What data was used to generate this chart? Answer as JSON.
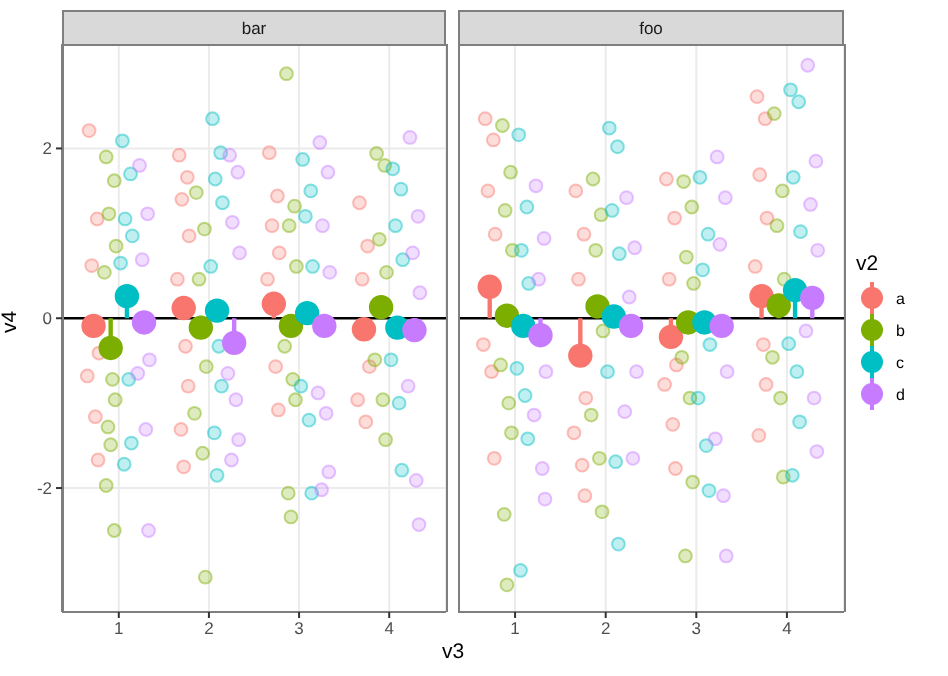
{
  "chart_data": [
    {
      "type": "scatter",
      "title": "bar",
      "xlabel": "v3",
      "ylabel": "v4",
      "xlim": [
        0.37,
        4.63
      ],
      "xticks": [
        1,
        2,
        3,
        4
      ],
      "ylim": [
        -3.46,
        3.23
      ],
      "yticks": [
        -2,
        0,
        2
      ],
      "grid": true,
      "marker": "circle",
      "ref_lines": [
        {
          "axis": "y",
          "value": 0,
          "color": "#000000"
        }
      ],
      "series": [
        {
          "color": "#f8766d",
          "x": [
            0.67,
            0.76,
            0.7,
            0.78,
            0.65,
            0.74,
            0.77,
            1.67,
            1.76,
            1.7,
            1.78,
            1.65,
            1.74,
            1.77,
            1.69,
            1.72,
            2.67,
            2.76,
            2.7,
            2.78,
            2.65,
            2.74,
            2.77,
            3.67,
            3.76,
            3.7,
            3.78,
            3.65,
            3.74
          ],
          "values": [
            2.21,
            1.17,
            0.62,
            -0.41,
            -0.68,
            -1.16,
            -1.67,
            1.92,
            1.66,
            1.4,
            0.97,
            0.46,
            -0.33,
            -0.8,
            -1.31,
            -1.75,
            1.95,
            1.44,
            1.09,
            0.77,
            0.46,
            -0.57,
            -1.08,
            1.36,
            0.85,
            0.46,
            -0.57,
            -0.96,
            -1.22
          ]
        },
        {
          "color": "#7cae00",
          "x": [
            0.86,
            0.95,
            0.89,
            0.97,
            0.84,
            0.93,
            0.96,
            0.88,
            0.91,
            0.86,
            0.95,
            1.86,
            1.95,
            1.89,
            1.97,
            1.84,
            1.93,
            1.96,
            2.86,
            2.95,
            2.89,
            2.97,
            2.84,
            2.93,
            2.96,
            2.88,
            2.91,
            3.86,
            3.95,
            3.89,
            3.97,
            3.84,
            3.93,
            3.96
          ],
          "values": [
            1.9,
            1.62,
            1.23,
            0.85,
            0.54,
            -0.72,
            -0.96,
            -1.28,
            -1.49,
            -1.97,
            -2.5,
            1.48,
            1.05,
            0.46,
            -0.57,
            -1.12,
            -1.59,
            -3.05,
            2.88,
            1.32,
            1.09,
            0.61,
            -0.33,
            -0.72,
            -0.96,
            -2.06,
            -2.34,
            1.94,
            1.8,
            0.93,
            0.54,
            -0.49,
            -0.96,
            -1.43
          ]
        },
        {
          "color": "#00bfc4",
          "x": [
            1.04,
            1.13,
            1.07,
            1.15,
            1.02,
            1.11,
            1.14,
            1.06,
            2.04,
            2.13,
            2.07,
            2.15,
            2.02,
            2.11,
            2.14,
            2.06,
            2.09,
            3.04,
            3.13,
            3.07,
            3.15,
            3.02,
            3.11,
            3.14,
            4.04,
            4.13,
            4.07,
            4.15,
            4.02,
            4.11,
            4.14
          ],
          "values": [
            2.09,
            1.7,
            1.17,
            0.97,
            0.65,
            -0.72,
            -1.47,
            -1.72,
            2.35,
            1.95,
            1.64,
            1.36,
            0.61,
            -0.33,
            -0.8,
            -1.35,
            -1.85,
            1.87,
            1.5,
            1.2,
            0.61,
            -0.8,
            -1.2,
            -2.06,
            1.76,
            1.52,
            1.09,
            0.69,
            -0.49,
            -1.0,
            -1.79
          ]
        },
        {
          "color": "#c77cff",
          "x": [
            1.23,
            1.32,
            1.26,
            1.34,
            1.21,
            1.3,
            1.33,
            2.23,
            2.32,
            2.26,
            2.34,
            2.21,
            2.3,
            2.33,
            2.25,
            3.23,
            3.32,
            3.26,
            3.34,
            3.21,
            3.3,
            3.33,
            3.25,
            4.23,
            4.32,
            4.26,
            4.34,
            4.21,
            4.3,
            4.33
          ],
          "values": [
            1.8,
            1.23,
            0.69,
            -0.49,
            -0.65,
            -1.31,
            -2.5,
            1.92,
            1.72,
            1.13,
            0.77,
            -0.65,
            -0.96,
            -1.43,
            -1.67,
            2.07,
            1.72,
            1.09,
            0.54,
            -0.88,
            -1.12,
            -1.81,
            -2.02,
            2.13,
            1.2,
            0.77,
            0.3,
            -0.8,
            -1.91,
            -2.43
          ]
        },
        {
          "type": "lollipop",
          "color": "#f8766d",
          "x": [
            0.72,
            1.72,
            2.72,
            3.72
          ],
          "values": [
            -0.09,
            0.12,
            0.17,
            -0.13
          ]
        },
        {
          "type": "lollipop",
          "color": "#7cae00",
          "x": [
            0.91,
            1.91,
            2.91,
            3.91
          ],
          "values": [
            -0.35,
            -0.11,
            -0.09,
            0.13
          ]
        },
        {
          "type": "lollipop",
          "color": "#00bfc4",
          "x": [
            1.09,
            2.09,
            3.09,
            4.09
          ],
          "values": [
            0.26,
            0.09,
            0.06,
            -0.11
          ]
        },
        {
          "type": "lollipop",
          "color": "#c77cff",
          "x": [
            1.28,
            2.28,
            3.28,
            4.28
          ],
          "values": [
            -0.05,
            -0.29,
            -0.09,
            -0.14
          ]
        }
      ]
    },
    {
      "type": "scatter",
      "title": "foo",
      "xlim": [
        0.37,
        4.63
      ],
      "xticks": [
        1,
        2,
        3,
        4
      ],
      "ylim": [
        -3.46,
        3.23
      ],
      "yticks": [
        -2,
        0,
        2
      ],
      "tick_labels": "x",
      "grid": true,
      "marker": "circle",
      "legend": "right",
      "legend_title": "v2",
      "ref_lines": [
        {
          "axis": "y",
          "value": 0,
          "color": "#000000"
        }
      ],
      "series": [
        {
          "color": "#f8766d",
          "x": [
            0.67,
            0.76,
            0.7,
            0.78,
            0.65,
            0.74,
            0.77,
            1.67,
            1.76,
            1.7,
            1.78,
            1.65,
            1.74,
            1.77,
            2.67,
            2.76,
            2.7,
            2.78,
            2.65,
            2.74,
            2.77,
            3.67,
            3.76,
            3.7,
            3.78,
            3.65,
            3.74,
            3.77,
            3.69
          ],
          "values": [
            2.35,
            2.1,
            1.5,
            0.99,
            -0.31,
            -0.63,
            -1.65,
            1.5,
            0.99,
            0.46,
            -0.94,
            -1.35,
            -1.73,
            -2.09,
            1.64,
            1.18,
            0.46,
            -0.55,
            -0.78,
            -1.25,
            -1.77,
            2.61,
            2.35,
            1.69,
            1.18,
            0.61,
            -0.31,
            -0.78,
            -1.38
          ]
        },
        {
          "color": "#7cae00",
          "x": [
            0.86,
            0.95,
            0.89,
            0.97,
            0.84,
            0.93,
            0.96,
            0.88,
            0.91,
            1.86,
            1.95,
            1.89,
            1.97,
            1.84,
            1.93,
            1.96,
            2.86,
            2.95,
            2.89,
            2.97,
            2.84,
            2.93,
            2.96,
            2.88,
            3.86,
            3.95,
            3.89,
            3.97,
            3.84,
            3.93,
            3.96
          ],
          "values": [
            2.27,
            1.72,
            1.27,
            0.8,
            -0.55,
            -1.0,
            -1.35,
            -2.31,
            -3.14,
            1.64,
            1.22,
            0.8,
            -0.15,
            -1.14,
            -1.65,
            -2.28,
            1.61,
            1.31,
            0.72,
            0.41,
            -0.46,
            -0.94,
            -1.93,
            -2.8,
            2.41,
            1.5,
            1.09,
            0.46,
            -0.46,
            -0.94,
            -1.87
          ]
        },
        {
          "color": "#00bfc4",
          "x": [
            1.04,
            1.13,
            1.07,
            1.15,
            1.02,
            1.11,
            1.14,
            1.06,
            2.04,
            2.13,
            2.07,
            2.15,
            2.02,
            2.11,
            2.14,
            3.04,
            3.13,
            3.07,
            3.15,
            3.02,
            3.11,
            3.14,
            4.04,
            4.13,
            4.07,
            4.15,
            4.02,
            4.11,
            4.14,
            4.06
          ],
          "values": [
            2.16,
            1.31,
            0.8,
            0.41,
            -0.59,
            -0.91,
            -1.42,
            -2.97,
            2.24,
            2.02,
            1.27,
            0.76,
            -0.63,
            -1.69,
            -2.66,
            1.66,
            0.99,
            0.57,
            -0.31,
            -0.94,
            -1.5,
            -2.03,
            2.69,
            2.55,
            1.66,
            1.02,
            -0.3,
            -0.63,
            -1.22,
            -1.85
          ]
        },
        {
          "color": "#c77cff",
          "x": [
            1.23,
            1.32,
            1.26,
            1.34,
            1.21,
            1.3,
            1.33,
            2.23,
            2.32,
            2.26,
            2.34,
            2.21,
            2.3,
            3.23,
            3.32,
            3.26,
            3.34,
            3.21,
            3.3,
            3.33,
            4.23,
            4.32,
            4.26,
            4.34,
            4.21,
            4.3,
            4.33
          ],
          "values": [
            1.56,
            0.94,
            0.46,
            -0.63,
            -1.14,
            -1.77,
            -2.13,
            1.42,
            0.83,
            0.25,
            -0.63,
            -1.1,
            -1.65,
            1.9,
            1.42,
            0.87,
            -0.63,
            -1.42,
            -2.09,
            -2.8,
            2.98,
            1.85,
            1.34,
            0.8,
            -0.15,
            -0.94,
            -1.57
          ]
        },
        {
          "type": "lollipop",
          "name": "a",
          "color": "#f8766d",
          "x": [
            0.72,
            1.72,
            2.72,
            3.72
          ],
          "values": [
            0.37,
            -0.44,
            -0.22,
            0.26
          ]
        },
        {
          "type": "lollipop",
          "name": "b",
          "color": "#7cae00",
          "x": [
            0.91,
            1.91,
            2.91,
            3.91
          ],
          "values": [
            0.03,
            0.14,
            -0.05,
            0.15
          ]
        },
        {
          "type": "lollipop",
          "name": "c",
          "color": "#00bfc4",
          "x": [
            1.09,
            2.09,
            3.09,
            4.09
          ],
          "values": [
            -0.09,
            0.02,
            -0.05,
            0.33
          ]
        },
        {
          "type": "lollipop",
          "name": "d",
          "color": "#c77cff",
          "x": [
            1.28,
            2.28,
            3.28,
            4.28
          ],
          "values": [
            -0.2,
            -0.09,
            -0.09,
            0.24
          ]
        }
      ]
    }
  ]
}
